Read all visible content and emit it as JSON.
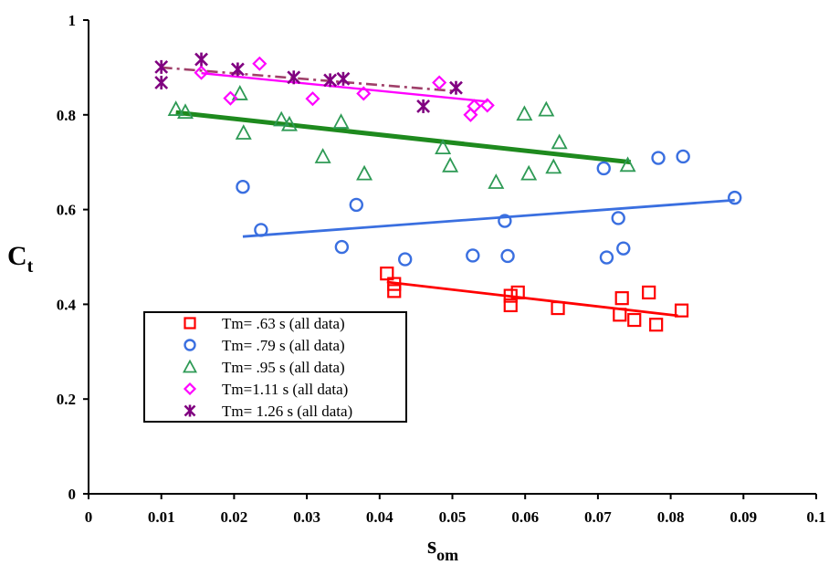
{
  "chart_data": {
    "type": "scatter",
    "xlabel": "s",
    "xlabel_sub": "om",
    "ylabel": "C",
    "ylabel_sub": "t",
    "xlim": [
      0,
      0.1
    ],
    "ylim": [
      0,
      1
    ],
    "xticks": [
      "0",
      "0.01",
      "0.02",
      "0.03",
      "0.04",
      "0.05",
      "0.06",
      "0.07",
      "0.08",
      "0.09",
      "0.1"
    ],
    "yticks": [
      "0",
      "0.2",
      "0.4",
      "0.6",
      "0.8",
      "1"
    ],
    "grid": false,
    "legend_placement": "lower-left",
    "series": [
      {
        "name": "Tm= .63 s (all data)",
        "marker": "square",
        "color": "#ff0000",
        "points": [
          [
            0.041,
            0.465
          ],
          [
            0.042,
            0.443
          ],
          [
            0.042,
            0.428
          ],
          [
            0.058,
            0.398
          ],
          [
            0.058,
            0.418
          ],
          [
            0.059,
            0.425
          ],
          [
            0.0645,
            0.392
          ],
          [
            0.073,
            0.378
          ],
          [
            0.0733,
            0.413
          ],
          [
            0.075,
            0.367
          ],
          [
            0.077,
            0.425
          ],
          [
            0.078,
            0.357
          ],
          [
            0.0815,
            0.387
          ]
        ],
        "trend": {
          "x": [
            0.041,
            0.081
          ],
          "y": [
            0.447,
            0.376
          ],
          "style": "solid",
          "color": "#ff0000"
        }
      },
      {
        "name": "Tm= .79 s (all data)",
        "marker": "circle",
        "color": "#3a6fe0",
        "points": [
          [
            0.0212,
            0.648
          ],
          [
            0.0237,
            0.557
          ],
          [
            0.0348,
            0.521
          ],
          [
            0.0368,
            0.61
          ],
          [
            0.0435,
            0.495
          ],
          [
            0.0528,
            0.503
          ],
          [
            0.0572,
            0.576
          ],
          [
            0.0576,
            0.502
          ],
          [
            0.0708,
            0.687
          ],
          [
            0.0712,
            0.499
          ],
          [
            0.0728,
            0.582
          ],
          [
            0.0735,
            0.518
          ],
          [
            0.0783,
            0.709
          ],
          [
            0.0817,
            0.712
          ],
          [
            0.0888,
            0.625
          ]
        ],
        "trend": {
          "x": [
            0.0212,
            0.0888
          ],
          "y": [
            0.543,
            0.62
          ],
          "style": "solid",
          "color": "#3a6fe0"
        }
      },
      {
        "name": "Tm= .95 s (all data)",
        "marker": "triangle",
        "color": "#2e9a55",
        "points": [
          [
            0.012,
            0.812
          ],
          [
            0.0133,
            0.806
          ],
          [
            0.0208,
            0.845
          ],
          [
            0.0213,
            0.762
          ],
          [
            0.0265,
            0.79
          ],
          [
            0.0276,
            0.78
          ],
          [
            0.0322,
            0.712
          ],
          [
            0.0347,
            0.785
          ],
          [
            0.0379,
            0.676
          ],
          [
            0.0487,
            0.731
          ],
          [
            0.0497,
            0.693
          ],
          [
            0.056,
            0.658
          ],
          [
            0.0599,
            0.802
          ],
          [
            0.0605,
            0.676
          ],
          [
            0.0629,
            0.811
          ],
          [
            0.0639,
            0.69
          ],
          [
            0.0647,
            0.742
          ],
          [
            0.0741,
            0.694
          ]
        ],
        "trend": {
          "x": [
            0.012,
            0.0745
          ],
          "y": [
            0.805,
            0.7
          ],
          "style": "solid",
          "color": "#1e8a1e"
        }
      },
      {
        "name": "Tm=1.11 s (all data)",
        "marker": "diamond",
        "color": "#ff00ff",
        "points": [
          [
            0.0155,
            0.889
          ],
          [
            0.0195,
            0.835
          ],
          [
            0.0235,
            0.908
          ],
          [
            0.0308,
            0.834
          ],
          [
            0.0378,
            0.845
          ],
          [
            0.0482,
            0.868
          ],
          [
            0.0525,
            0.8
          ],
          [
            0.053,
            0.818
          ],
          [
            0.0548,
            0.82
          ]
        ],
        "trend": {
          "x": [
            0.0155,
            0.0548
          ],
          "y": [
            0.888,
            0.828
          ],
          "style": "solid",
          "color": "#ff00ff"
        }
      },
      {
        "name": "Tm= 1.26 s (all data)",
        "marker": "asterisk",
        "color": "#800080",
        "points": [
          [
            0.01,
            0.901
          ],
          [
            0.01,
            0.868
          ],
          [
            0.0155,
            0.917
          ],
          [
            0.0205,
            0.896
          ],
          [
            0.0282,
            0.879
          ],
          [
            0.0332,
            0.873
          ],
          [
            0.035,
            0.876
          ],
          [
            0.046,
            0.818
          ],
          [
            0.0505,
            0.857
          ]
        ],
        "trend": {
          "x": [
            0.01,
            0.0505
          ],
          "y": [
            0.9,
            0.85
          ],
          "style": "dashdot",
          "color": "#a0406a"
        }
      }
    ]
  }
}
